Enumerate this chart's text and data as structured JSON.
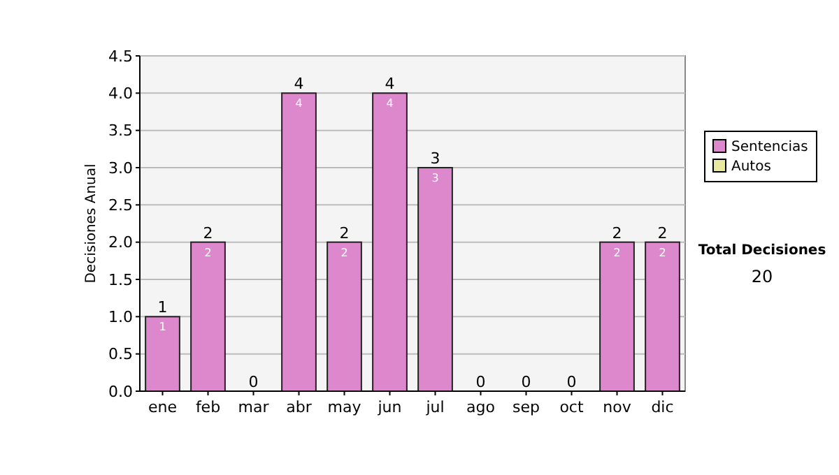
{
  "chart_data": {
    "type": "bar",
    "ylabel": "Decisiones Anual",
    "categories": [
      "ene",
      "feb",
      "mar",
      "abr",
      "may",
      "jun",
      "jul",
      "ago",
      "sep",
      "oct",
      "nov",
      "dic"
    ],
    "stacked": true,
    "series": [
      {
        "name": "Sentencias",
        "color": "#dd88cc",
        "values": [
          1,
          2,
          0,
          4,
          2,
          4,
          3,
          0,
          0,
          0,
          2,
          2
        ],
        "value_labels": [
          "1",
          "2",
          null,
          "4",
          "2",
          "4",
          "3",
          null,
          null,
          null,
          "2",
          "2"
        ]
      },
      {
        "name": "Autos",
        "color": "#e8e8a0",
        "values": [
          0,
          0,
          0,
          0,
          0,
          0,
          0,
          0,
          0,
          0,
          0,
          0
        ]
      }
    ],
    "totals": [
      "1",
      "2",
      "0",
      "4",
      "2",
      "4",
      "3",
      "0",
      "0",
      "0",
      "2",
      "2"
    ],
    "ylim": [
      0,
      4.5
    ],
    "yticks": [
      {
        "value": 0,
        "label": "0.0"
      },
      {
        "value": 0.5,
        "label": "0.5"
      },
      {
        "value": 1,
        "label": "1.0"
      },
      {
        "value": 1.5,
        "label": "1.5"
      },
      {
        "value": 2,
        "label": "2.0"
      },
      {
        "value": 2.5,
        "label": "2.5"
      },
      {
        "value": 3,
        "label": "3.0"
      },
      {
        "value": 3.5,
        "label": "3.5"
      },
      {
        "value": 4,
        "label": "4.0"
      },
      {
        "value": 4.5,
        "label": "4.5"
      }
    ],
    "grid": "y",
    "legend": "right",
    "annotations": [
      "Total Decisiones",
      "20"
    ]
  }
}
